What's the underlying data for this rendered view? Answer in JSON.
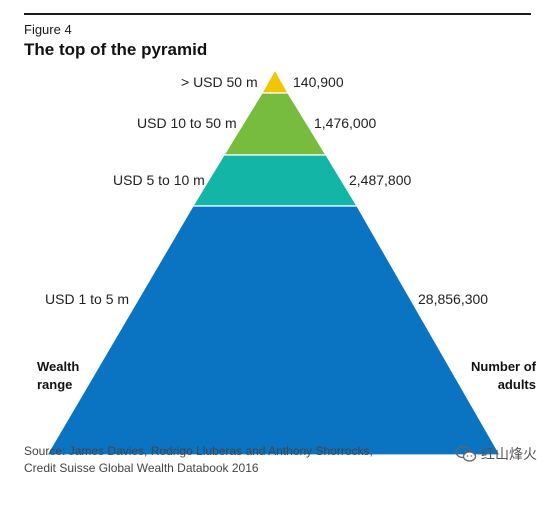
{
  "figure": {
    "label": "Figure 4",
    "title": "The top of the pyramid",
    "left_axis_title": "Wealth range",
    "right_axis_title": "Number of adults",
    "source_line1": "Source: James Davies, Rodrigo Lluberas and Anthony Shorrocks,",
    "source_line2": "Credit Suisse Global Wealth Databook 2016",
    "watermark": "红山烽火"
  },
  "chart_data": {
    "type": "pyramid",
    "title": "The top of the pyramid",
    "xlabel": "Wealth range",
    "ylabel": "Number of adults",
    "categories": [
      "> USD 50 m",
      "USD 10 to 50 m",
      "USD 5 to 10 m",
      "USD 1 to 5 m"
    ],
    "value_labels": [
      "140,900",
      "1,476,000",
      "2,487,800",
      "28,856,300"
    ],
    "values": [
      140900,
      1476000,
      2487800,
      28856300
    ],
    "colors": [
      "#f2c500",
      "#77bb3f",
      "#12b5a6",
      "#0a73c2"
    ]
  }
}
